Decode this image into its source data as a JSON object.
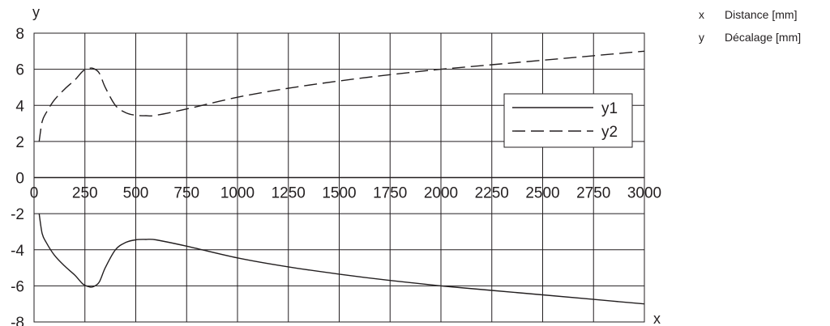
{
  "chart_data": {
    "type": "line",
    "xlabel": "x",
    "ylabel": "y",
    "xlim": [
      0,
      3000
    ],
    "ylim": [
      -8,
      8
    ],
    "x_ticks": [
      0,
      250,
      500,
      750,
      1000,
      1250,
      1500,
      1750,
      2000,
      2250,
      2500,
      2750,
      3000
    ],
    "y_ticks": [
      8,
      6,
      4,
      2,
      0,
      -2,
      -4,
      -6,
      -8
    ],
    "grid": true,
    "legend_position": "right",
    "series": [
      {
        "name": "y1",
        "style": "solid",
        "color": "#231f20",
        "x": [
          25,
          40,
          60,
          100,
          150,
          200,
          240,
          270,
          290,
          320,
          350,
          400,
          450,
          500,
          550,
          600,
          750,
          1000,
          1250,
          1500,
          1750,
          2000,
          2250,
          2500,
          2750,
          3000
        ],
        "y": [
          -2.0,
          -3.1,
          -3.6,
          -4.3,
          -4.9,
          -5.4,
          -5.9,
          -6.05,
          -6.05,
          -5.8,
          -5.0,
          -4.0,
          -3.6,
          -3.45,
          -3.43,
          -3.45,
          -3.8,
          -4.45,
          -4.95,
          -5.35,
          -5.7,
          -6.0,
          -6.25,
          -6.5,
          -6.75,
          -7.0
        ]
      },
      {
        "name": "y2",
        "style": "dashed",
        "color": "#231f20",
        "x": [
          25,
          40,
          60,
          100,
          150,
          200,
          240,
          270,
          290,
          320,
          350,
          400,
          450,
          500,
          550,
          600,
          750,
          1000,
          1250,
          1500,
          1750,
          2000,
          2250,
          2500,
          2750,
          3000
        ],
        "y": [
          2.0,
          3.1,
          3.6,
          4.3,
          4.9,
          5.4,
          5.9,
          6.05,
          6.05,
          5.8,
          5.0,
          4.0,
          3.6,
          3.45,
          3.43,
          3.45,
          3.8,
          4.45,
          4.95,
          5.35,
          5.7,
          6.0,
          6.25,
          6.5,
          6.75,
          7.0
        ]
      }
    ]
  },
  "key": [
    {
      "symbol": "x",
      "text": "Distance [mm]"
    },
    {
      "symbol": "y",
      "text": "Décalage [mm]"
    }
  ]
}
